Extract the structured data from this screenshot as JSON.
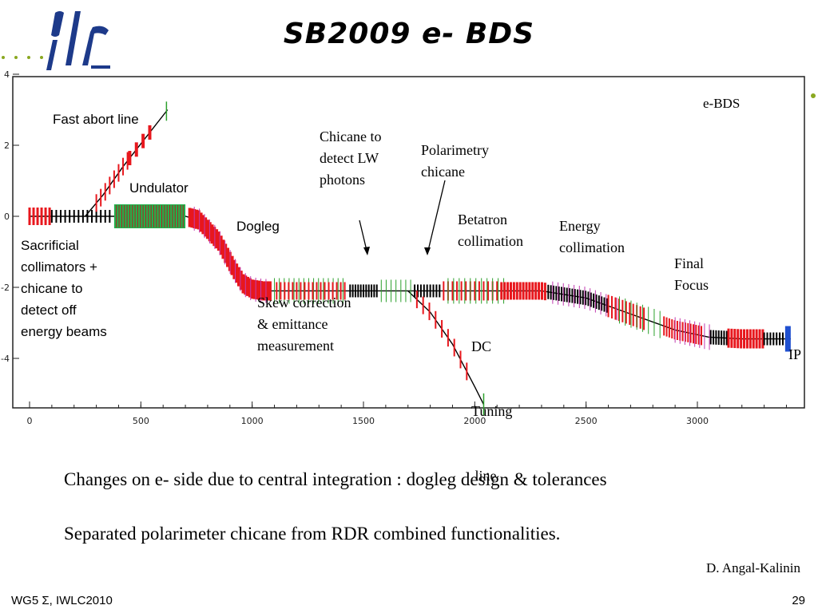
{
  "header": {
    "title": "SB2009 e- BDS"
  },
  "chart_data": {
    "type": "line",
    "title": "",
    "legend": "e-BDS",
    "xlim": [
      0,
      3450
    ],
    "ylim": [
      -5.3,
      4
    ],
    "x_ticks": [
      "0",
      "500",
      "1000",
      "1500",
      "2000",
      "2500",
      "3000"
    ],
    "y_ticks": [
      "4",
      "2",
      "0",
      "-2",
      "-4"
    ],
    "series": [
      {
        "name": "e-BDS",
        "x": [
          0,
          250,
          380,
          700,
          760,
          850,
          920,
          960,
          1000,
          1050,
          1100,
          1500,
          1900,
          2300,
          2500,
          2700,
          2900,
          3050,
          3200,
          3420
        ],
        "y": [
          0,
          0,
          0,
          0,
          -0.1,
          -0.7,
          -1.5,
          -1.9,
          -2.05,
          -2.1,
          -2.1,
          -2.1,
          -2.1,
          -2.1,
          -2.3,
          -2.75,
          -3.2,
          -3.4,
          -3.45,
          -3.45
        ]
      },
      {
        "name": "Fast abort line",
        "x": [
          250,
          330,
          420,
          520,
          620
        ],
        "y": [
          0,
          0.6,
          1.4,
          2.2,
          3.0
        ]
      },
      {
        "name": "DC Tuning line",
        "x": [
          1700,
          1800,
          1900,
          2000,
          2040
        ],
        "y": [
          -2.1,
          -2.7,
          -3.6,
          -4.8,
          -5.3
        ]
      }
    ]
  },
  "annotations": {
    "fast_abort": "Fast abort line",
    "undulator": "Undulator",
    "dogleg": "Dogleg",
    "sacrificial": [
      "Sacrificial",
      "collimators +",
      "chicane to",
      "detect off",
      "energy beams"
    ],
    "chicane_lw": [
      "Chicane to",
      "detect LW",
      "photons"
    ],
    "polarimetry": [
      "Polarimetry",
      "chicane"
    ],
    "betatron": [
      "Betatron",
      "collimation"
    ],
    "energy": [
      "Energy",
      "collimation"
    ],
    "final_focus": [
      "Final",
      "Focus"
    ],
    "skew": [
      "Skew correction",
      "& emittance",
      "measurement"
    ],
    "dc_tuning": [
      "DC",
      "Tuning",
      " line"
    ],
    "ip": "IP"
  },
  "notes": {
    "line1": "Changes on e- side due to central integration : dogleg design & tolerances",
    "line2": "Separated polarimeter chicane from RDR combined  functionalities."
  },
  "author": "D. Angal-Kalinin",
  "footer": {
    "left": "WG5 Σ, IWLC2010",
    "page": "29"
  },
  "colors": {
    "logo_blue": "#1d3a8a",
    "dots": "#8aa820",
    "beamline": "#000000",
    "quad_red": "#e8171d",
    "undulator_green": "#22b14c",
    "marker_green": "#2ca02c",
    "magenta": "#c23bb0",
    "blue": "#2050d0"
  }
}
